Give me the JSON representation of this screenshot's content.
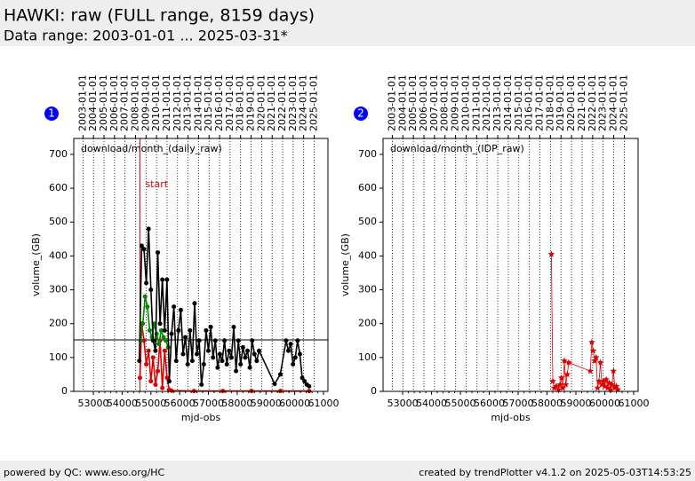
{
  "header": {
    "title": "HAWKI: raw (FULL range, 8159 days)",
    "subtitle": "Data range: 2003-01-01 ... 2025-03-31*"
  },
  "footer": {
    "left": "powered by QC: www.eso.org/HC",
    "right": "created by trendPlotter v4.1.2 on 2025-05-03T14:53:25"
  },
  "chart_data": [
    {
      "type": "line",
      "badge": "1",
      "label": "download/month_(daily_raw)",
      "xlabel": "mjd-obs",
      "ylabel": "volume_(GB)",
      "xlim": [
        52320,
        61155
      ],
      "ylim": [
        0,
        747
      ],
      "xticks": [
        53000,
        54000,
        55000,
        56000,
        57000,
        58000,
        59000,
        60000,
        61000
      ],
      "yticks": [
        0,
        100,
        200,
        300,
        400,
        500,
        600,
        700
      ],
      "x2ticks": [
        {
          "value": 52640,
          "label": "2003-01-01"
        },
        {
          "value": 53005,
          "label": "2004-01-01"
        },
        {
          "value": 53371,
          "label": "2005-01-01"
        },
        {
          "value": 53736,
          "label": "2006-01-01"
        },
        {
          "value": 54101,
          "label": "2007-01-01"
        },
        {
          "value": 54466,
          "label": "2008-01-01"
        },
        {
          "value": 54832,
          "label": "2009-01-01"
        },
        {
          "value": 55197,
          "label": "2010-01-01"
        },
        {
          "value": 55562,
          "label": "2011-01-01"
        },
        {
          "value": 55927,
          "label": "2012-01-01"
        },
        {
          "value": 56293,
          "label": "2013-01-01"
        },
        {
          "value": 56658,
          "label": "2014-01-01"
        },
        {
          "value": 57023,
          "label": "2015-01-01"
        },
        {
          "value": 57388,
          "label": "2016-01-01"
        },
        {
          "value": 57754,
          "label": "2017-01-01"
        },
        {
          "value": 58119,
          "label": "2018-01-01"
        },
        {
          "value": 58484,
          "label": "2019-01-01"
        },
        {
          "value": 58849,
          "label": "2020-01-01"
        },
        {
          "value": 59215,
          "label": "2021-01-01"
        },
        {
          "value": 59580,
          "label": "2022-01-01"
        },
        {
          "value": 59945,
          "label": "2023-01-01"
        },
        {
          "value": 60310,
          "label": "2024-01-01"
        },
        {
          "value": 60676,
          "label": "2025-01-01"
        }
      ],
      "hline": 152,
      "hline_color": "#000000",
      "vline": 54620,
      "vline_color": "#dd0000",
      "vline_label": "start",
      "series": [
        {
          "color": "#dd0000",
          "marker": "dot",
          "x": [
            54620,
            54680,
            54760,
            54840,
            54920,
            55000,
            55080,
            55160,
            55240,
            55320,
            55400,
            55480,
            55560,
            55640,
            55720,
            56500,
            57500,
            58500,
            59500,
            60500
          ],
          "values": [
            40,
            200,
            150,
            80,
            120,
            30,
            100,
            20,
            60,
            150,
            10,
            120,
            40,
            5,
            2,
            1,
            1,
            1,
            1,
            1
          ]
        },
        {
          "color": "#008800",
          "marker": "dot",
          "x": [
            54650,
            54720,
            54800,
            54880,
            54960,
            55040,
            55120,
            55200,
            55280,
            55360,
            55440,
            55520,
            55600
          ],
          "values": [
            150,
            200,
            280,
            250,
            180,
            160,
            200,
            170,
            140,
            180,
            160,
            150,
            130
          ]
        },
        {
          "color": "#000000",
          "marker": "dot",
          "x": [
            54600,
            54680,
            54760,
            54840,
            54920,
            55000,
            55080,
            55160,
            55240,
            55320,
            55400,
            55480,
            55560,
            55640,
            55720,
            55800,
            55880,
            55960,
            56040,
            56120,
            56200,
            56280,
            56360,
            56440,
            56520,
            56600,
            56680,
            56760,
            56840,
            56920,
            57000,
            57080,
            57160,
            57240,
            57320,
            57400,
            57480,
            57560,
            57640,
            57720,
            57800,
            57880,
            57960,
            58040,
            58120,
            58200,
            58280,
            58360,
            58440,
            58520,
            58600,
            58680,
            58760,
            59300,
            59500,
            59700,
            59780,
            59860,
            59940,
            60020,
            60100,
            60180,
            60260,
            60340,
            60420,
            60500
          ],
          "values": [
            90,
            430,
            420,
            320,
            480,
            300,
            150,
            120,
            410,
            200,
            330,
            180,
            330,
            30,
            170,
            250,
            90,
            180,
            240,
            110,
            160,
            80,
            180,
            90,
            260,
            110,
            150,
            20,
            80,
            180,
            120,
            190,
            100,
            150,
            70,
            110,
            90,
            150,
            80,
            120,
            100,
            190,
            60,
            150,
            80,
            130,
            100,
            120,
            70,
            150,
            110,
            90,
            120,
            22,
            50,
            150,
            120,
            140,
            80,
            100,
            150,
            110,
            40,
            30,
            20,
            15
          ]
        }
      ]
    },
    {
      "type": "line",
      "badge": "2",
      "label": "download/month_(IDP_raw)",
      "xlabel": "mjd-obs",
      "ylabel": "volume_(GB)",
      "xlim": [
        52320,
        61155
      ],
      "ylim": [
        0,
        747
      ],
      "xticks": [
        53000,
        54000,
        55000,
        56000,
        57000,
        58000,
        59000,
        60000,
        61000
      ],
      "yticks": [
        0,
        100,
        200,
        300,
        400,
        500,
        600,
        700
      ],
      "x2ticks": [
        {
          "value": 52640,
          "label": "2003-01-01"
        },
        {
          "value": 53005,
          "label": "2004-01-01"
        },
        {
          "value": 53371,
          "label": "2005-01-01"
        },
        {
          "value": 53736,
          "label": "2006-01-01"
        },
        {
          "value": 54101,
          "label": "2007-01-01"
        },
        {
          "value": 54466,
          "label": "2008-01-01"
        },
        {
          "value": 54832,
          "label": "2009-01-01"
        },
        {
          "value": 55197,
          "label": "2010-01-01"
        },
        {
          "value": 55562,
          "label": "2011-01-01"
        },
        {
          "value": 55927,
          "label": "2012-01-01"
        },
        {
          "value": 56293,
          "label": "2013-01-01"
        },
        {
          "value": 56658,
          "label": "2014-01-01"
        },
        {
          "value": 57023,
          "label": "2015-01-01"
        },
        {
          "value": 57388,
          "label": "2016-01-01"
        },
        {
          "value": 57754,
          "label": "2017-01-01"
        },
        {
          "value": 58119,
          "label": "2018-01-01"
        },
        {
          "value": 58484,
          "label": "2019-01-01"
        },
        {
          "value": 58849,
          "label": "2020-01-01"
        },
        {
          "value": 59215,
          "label": "2021-01-01"
        },
        {
          "value": 59580,
          "label": "2022-01-01"
        },
        {
          "value": 59945,
          "label": "2023-01-01"
        },
        {
          "value": 60310,
          "label": "2024-01-01"
        },
        {
          "value": 60676,
          "label": "2025-01-01"
        }
      ],
      "series": [
        {
          "color": "#dd0000",
          "marker": "star",
          "x": [
            58150,
            58200,
            58250,
            58320,
            58400,
            58450,
            58500,
            58550,
            58600,
            58650,
            58700,
            58750,
            59500,
            59550,
            59600,
            59650,
            59700,
            59750,
            59800,
            59850,
            59900,
            59950,
            60000,
            60050,
            60100,
            60150,
            60200,
            60250,
            60300,
            60350,
            60400,
            60450
          ],
          "values": [
            405,
            30,
            10,
            15,
            5,
            20,
            40,
            10,
            90,
            20,
            50,
            85,
            60,
            145,
            120,
            90,
            100,
            10,
            30,
            85,
            20,
            30,
            15,
            35,
            10,
            25,
            5,
            20,
            60,
            10,
            15,
            5
          ]
        }
      ]
    }
  ]
}
